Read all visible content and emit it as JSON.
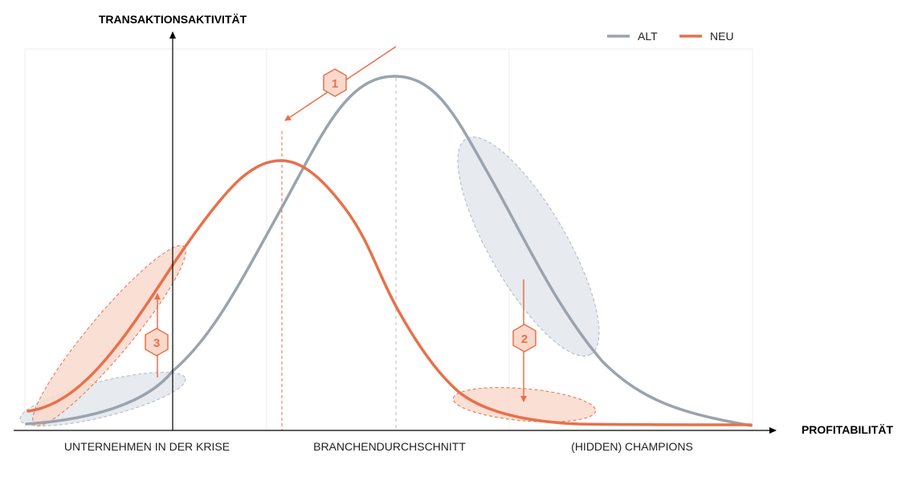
{
  "axes": {
    "y_title": "TRANSAKTIONSAKTIVITÄT",
    "x_title": "PROFITABILITÄT"
  },
  "legend": [
    {
      "label": "ALT",
      "color": "#9aa3ad"
    },
    {
      "label": "NEU",
      "color": "#e8704a"
    }
  ],
  "regions": [
    {
      "label": "UNTERNEHMEN IN DER KRISE"
    },
    {
      "label": "BRANCHENDURCHSCHNITT"
    },
    {
      "label": "(HIDDEN) CHAMPIONS"
    }
  ],
  "markers": [
    {
      "label": "1"
    },
    {
      "label": "2"
    },
    {
      "label": "3"
    }
  ],
  "colors": {
    "alt": "#9aa3ad",
    "neu": "#e8704a",
    "alt_fill": "#e7eaee",
    "neu_fill": "#f9d9cc",
    "grid": "#eeeeee"
  }
}
